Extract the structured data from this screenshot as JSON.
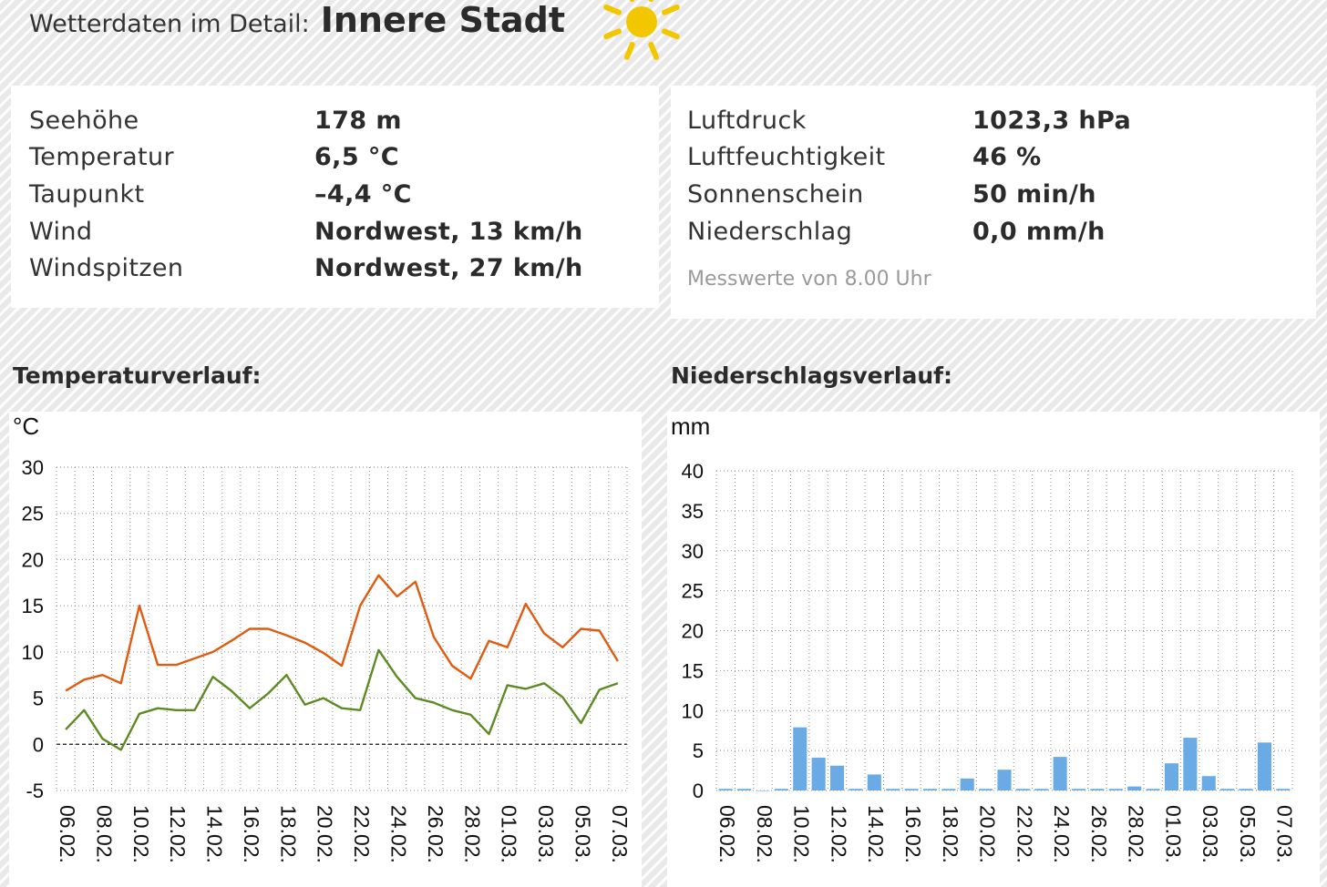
{
  "header": {
    "label": "Wetterdaten im Detail:",
    "location": "Innere Stadt",
    "icon": "sun-icon",
    "sun_color": "#f2c700"
  },
  "left_panel": {
    "rows": [
      {
        "label": "Seehöhe",
        "value": "178 m"
      },
      {
        "label": "Temperatur",
        "value": "6,5 °C"
      },
      {
        "label": "Taupunkt",
        "value": "–4,4 °C"
      },
      {
        "label": "Wind",
        "value": "Nordwest, 13 km/h"
      },
      {
        "label": "Windspitzen",
        "value": "Nordwest, 27 km/h"
      }
    ]
  },
  "right_panel": {
    "rows": [
      {
        "label": "Luftdruck",
        "value": "1023,3 hPa"
      },
      {
        "label": "Luftfeuchtigkeit",
        "value": "46 %"
      },
      {
        "label": "Sonnenschein",
        "value": "50 min/h"
      },
      {
        "label": "Niederschlag",
        "value": "0,0 mm/h"
      }
    ],
    "note": "Messwerte von 8.00 Uhr"
  },
  "sections": {
    "temperature_title": "Temperaturverlauf:",
    "precipitation_title": "Niederschlagsverlauf:"
  },
  "chart_data": [
    {
      "type": "line",
      "unit_label": "°C",
      "x": [
        "06.02.",
        "07.02.",
        "08.02.",
        "09.02.",
        "10.02.",
        "11.02.",
        "12.02.",
        "13.02.",
        "14.02.",
        "15.02.",
        "16.02.",
        "17.02.",
        "18.02.",
        "19.02.",
        "20.02.",
        "21.02.",
        "22.02.",
        "23.02.",
        "24.02.",
        "25.02.",
        "26.02.",
        "27.02.",
        "28.02.",
        "29.02.",
        "01.03.",
        "02.03.",
        "03.03.",
        "04.03.",
        "05.03.",
        "06.03.",
        "07.03."
      ],
      "x_tick_labels": [
        "06.02.",
        "08.02.",
        "10.02.",
        "12.02.",
        "14.02.",
        "16.02.",
        "18.02.",
        "20.02.",
        "22.02.",
        "24.02.",
        "26.02.",
        "28.02.",
        "01.03.",
        "03.03.",
        "05.03.",
        "07.03."
      ],
      "series": [
        {
          "color": "#e05a10",
          "values": [
            5.8,
            7.0,
            7.5,
            6.6,
            15.0,
            8.6,
            8.6,
            9.3,
            10.0,
            11.2,
            12.5,
            12.5,
            11.8,
            11.0,
            9.9,
            8.5,
            15.0,
            18.3,
            16.0,
            17.6,
            11.6,
            8.5,
            7.1,
            11.2,
            10.5,
            15.2,
            12.0,
            10.5,
            12.5,
            12.3,
            9.0
          ]
        },
        {
          "color": "#5e8a23",
          "values": [
            1.6,
            3.7,
            0.6,
            -0.6,
            3.3,
            3.9,
            3.7,
            3.7,
            7.3,
            5.8,
            3.9,
            5.5,
            7.5,
            4.3,
            5.0,
            3.9,
            3.7,
            10.2,
            7.3,
            5.0,
            4.5,
            3.7,
            3.2,
            1.1,
            6.4,
            6.0,
            6.6,
            5.1,
            2.3,
            5.9,
            6.6
          ]
        }
      ],
      "ylim": [
        -5,
        30
      ],
      "yticks": [
        -5,
        0,
        5,
        10,
        15,
        20,
        25,
        30
      ],
      "zero_line": "dashed",
      "grid": true
    },
    {
      "type": "bar",
      "unit_label": "mm",
      "x": [
        "06.02.",
        "07.02.",
        "08.02.",
        "09.02.",
        "10.02.",
        "11.02.",
        "12.02.",
        "13.02.",
        "14.02.",
        "15.02.",
        "16.02.",
        "17.02.",
        "18.02.",
        "19.02.",
        "20.02.",
        "21.02.",
        "22.02.",
        "23.02.",
        "24.02.",
        "25.02.",
        "26.02.",
        "27.02.",
        "28.02.",
        "29.02.",
        "01.03.",
        "02.03.",
        "03.03.",
        "04.03.",
        "05.03.",
        "06.03.",
        "07.03."
      ],
      "x_tick_labels": [
        "06.02.",
        "08.02.",
        "10.02.",
        "12.02.",
        "14.02.",
        "16.02.",
        "18.02.",
        "20.02.",
        "22.02.",
        "24.02.",
        "26.02.",
        "28.02.",
        "01.03.",
        "03.03.",
        "05.03.",
        "07.03."
      ],
      "values": [
        0.2,
        0.2,
        0.0,
        0.2,
        7.9,
        4.1,
        3.1,
        0.2,
        2.0,
        0.2,
        0.2,
        0.2,
        0.2,
        1.5,
        0.2,
        2.6,
        0.2,
        0.2,
        4.2,
        0.2,
        0.2,
        0.2,
        0.5,
        0.2,
        3.4,
        6.6,
        1.8,
        0.2,
        0.2,
        6.0,
        0.2
      ],
      "color": "#6aabe6",
      "ylim": [
        0,
        40
      ],
      "yticks": [
        0,
        5,
        10,
        15,
        20,
        25,
        30,
        35,
        40
      ],
      "grid": true
    }
  ]
}
